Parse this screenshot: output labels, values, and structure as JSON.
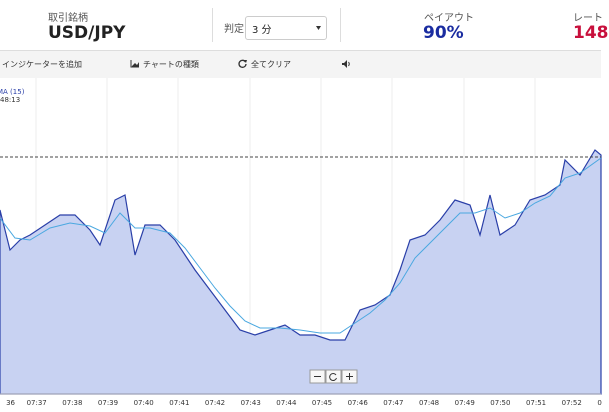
{
  "header": {
    "symbol_label": "取引銘柄",
    "symbol": "USD/JPY",
    "expiry_label": "判定",
    "expiry": "3 分",
    "payout_label": "ペイアウト",
    "payout": "90%",
    "rate_label": "レート",
    "rate": "148"
  },
  "toolbar": {
    "add_indicator": "インジケーターを追加",
    "chart_type": "チャートの種類",
    "clear_all": "全てクリア"
  },
  "chart": {
    "indicator": "MA (15)",
    "time": "48:13",
    "x_labels": [
      "36",
      "07:37",
      "07:38",
      "07:39",
      "07:40",
      "07:41",
      "07:42",
      "07:43",
      "07:44",
      "07:45",
      "07:46",
      "07:47",
      "07:48",
      "07:49",
      "07:50",
      "07:51",
      "07:52",
      "0"
    ]
  }
}
